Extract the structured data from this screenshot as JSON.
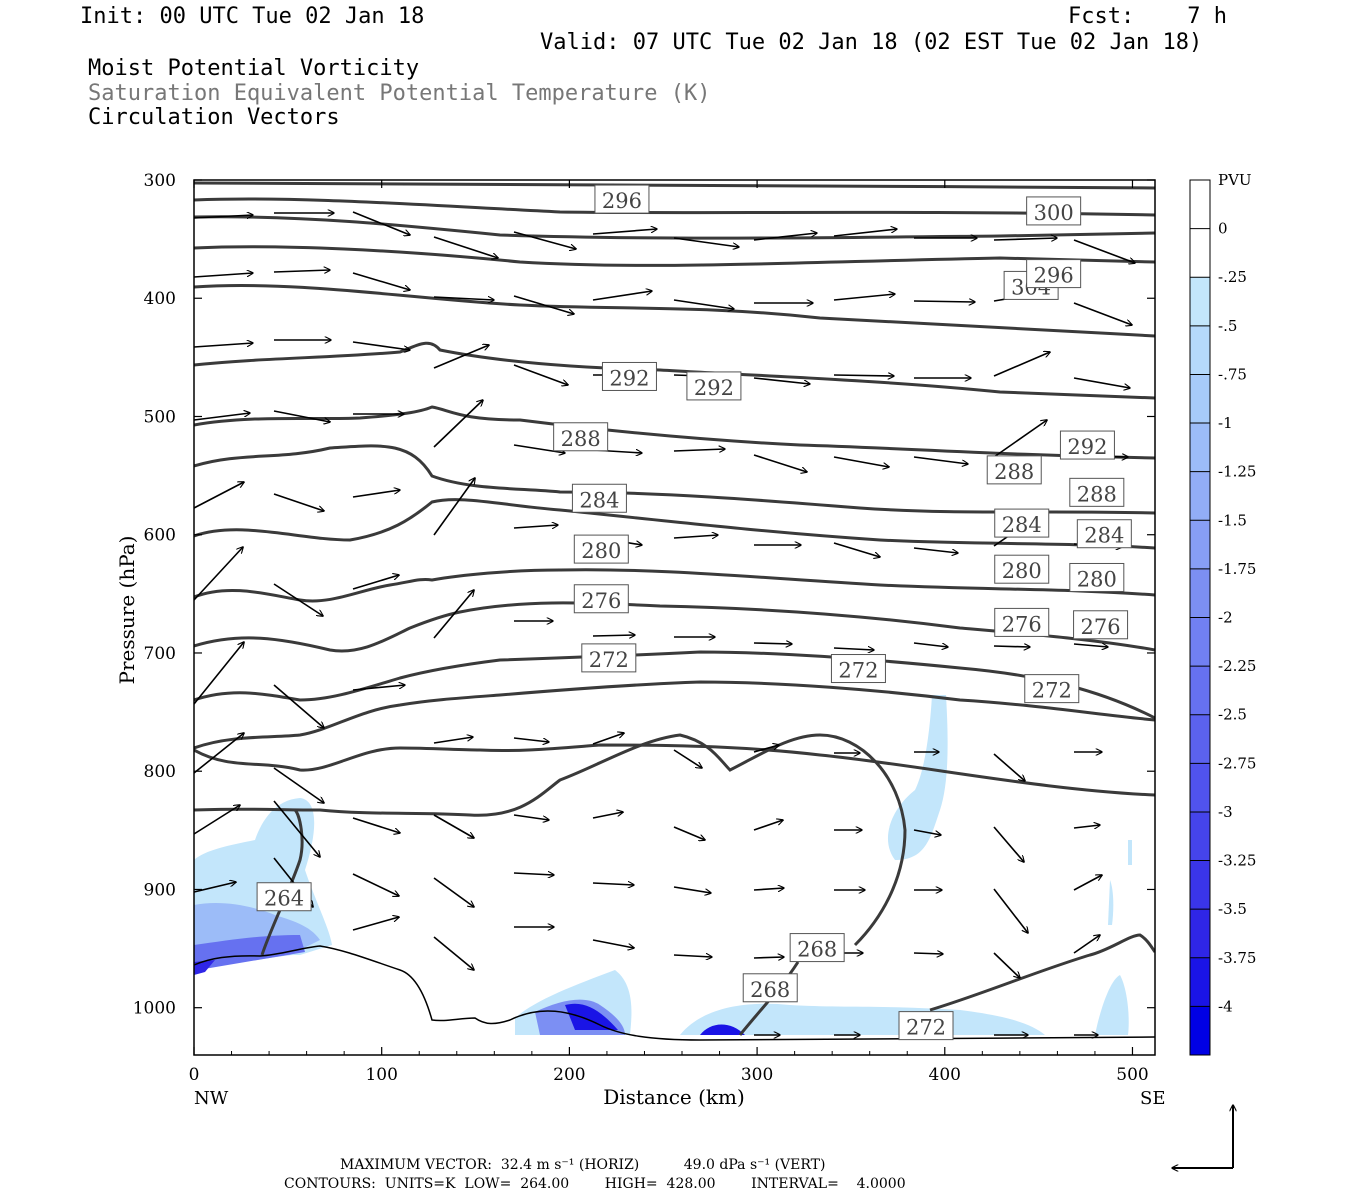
{
  "header": {
    "init": "Init: 00 UTC Tue 02 Jan 18",
    "fcst": "Fcst:    7 h",
    "valid": "Valid: 07 UTC Tue 02 Jan 18 (02 EST Tue 02 Jan 18)",
    "legend_line1": "Moist Potential Vorticity",
    "legend_line2": "Saturation Equivalent Potential Temperature (K)",
    "legend_line3": "Circulation Vectors"
  },
  "footer": {
    "max_vector": "MAXIMUM VECTOR:  32.4 m s⁻¹ (HORIZ)          49.0 dPa s⁻¹ (VERT)",
    "contours": "CONTOURS:  UNITS=K  LOW=  264.00        HIGH=  428.00        INTERVAL=    4.0000"
  },
  "chart_data": {
    "type": "contour",
    "xlabel": "Distance (km)",
    "ylabel": "Pressure (hPa)",
    "xlim": [
      0,
      512
    ],
    "ylim": [
      300,
      1040
    ],
    "x_ticks": [
      0,
      100,
      200,
      300,
      400,
      500
    ],
    "y_ticks": [
      300,
      400,
      500,
      600,
      700,
      800,
      900,
      1000
    ],
    "x_end_labels": [
      "NW",
      "SE"
    ],
    "colorbar": {
      "title": "PVU",
      "labels": [
        "0",
        "-.25",
        "-.5",
        "-.75",
        "-1",
        "-1.25",
        "-1.5",
        "-1.75",
        "-2",
        "-2.25",
        "-2.5",
        "-2.75",
        "-3",
        "-3.25",
        "-3.5",
        "-3.75",
        "-4"
      ],
      "colors": [
        "#ffffff",
        "#ffffff",
        "#c3e6fb",
        "#b5d9fb",
        "#a7cbfa",
        "#9cbcf8",
        "#92adf7",
        "#879ef5",
        "#7c8ff3",
        "#7180f2",
        "#6671f0",
        "#5b62ee",
        "#5053ed",
        "#4544eb",
        "#3a35e9",
        "#2f26e7",
        "#1a14e6",
        "#0000e4"
      ]
    },
    "contour_labels": [
      {
        "text": "304",
        "x": 446,
        "p": 390
      },
      {
        "text": "300",
        "x": 458,
        "p": 327
      },
      {
        "text": "296",
        "x": 228,
        "p": 317
      },
      {
        "text": "296",
        "x": 458,
        "p": 380
      },
      {
        "text": "292",
        "x": 232,
        "p": 467
      },
      {
        "text": "292",
        "x": 277,
        "p": 475
      },
      {
        "text": "292",
        "x": 476,
        "p": 525
      },
      {
        "text": "288",
        "x": 206,
        "p": 518
      },
      {
        "text": "288",
        "x": 437,
        "p": 546
      },
      {
        "text": "288",
        "x": 481,
        "p": 565
      },
      {
        "text": "284",
        "x": 216,
        "p": 570
      },
      {
        "text": "284",
        "x": 441,
        "p": 591
      },
      {
        "text": "284",
        "x": 485,
        "p": 600
      },
      {
        "text": "280",
        "x": 217,
        "p": 613
      },
      {
        "text": "280",
        "x": 441,
        "p": 630
      },
      {
        "text": "280",
        "x": 481,
        "p": 637
      },
      {
        "text": "276",
        "x": 217,
        "p": 655
      },
      {
        "text": "276",
        "x": 441,
        "p": 675
      },
      {
        "text": "276",
        "x": 483,
        "p": 677
      },
      {
        "text": "272",
        "x": 221,
        "p": 705
      },
      {
        "text": "272",
        "x": 354,
        "p": 714
      },
      {
        "text": "272",
        "x": 457,
        "p": 731
      },
      {
        "text": "268",
        "x": 332,
        "p": 950
      },
      {
        "text": "268",
        "x": 307,
        "p": 984
      },
      {
        "text": "272",
        "x": 390,
        "p": 1016
      },
      {
        "text": "264",
        "x": 48,
        "p": 907
      }
    ]
  }
}
